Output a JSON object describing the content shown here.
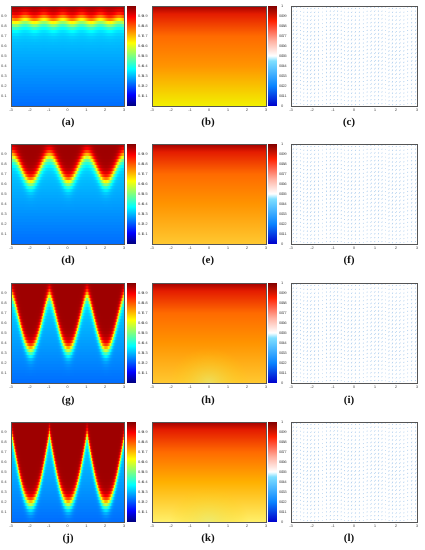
{
  "figure": {
    "rows": [
      {
        "labels": [
          "(a)",
          "(b)",
          "(c)"
        ],
        "fingers": 0
      },
      {
        "labels": [
          "(d)",
          "(e)",
          "(f)"
        ],
        "fingers": 1
      },
      {
        "labels": [
          "(g)",
          "(h)",
          "(i)"
        ],
        "fingers": 2
      },
      {
        "labels": [
          "(j)",
          "(k)",
          "(l)"
        ],
        "fingers": 3
      }
    ],
    "x_ticks": [
      "-3",
      "-2",
      "-1",
      "0",
      "1",
      "2",
      "3"
    ],
    "y_ticks": [
      "0.1",
      "0.2",
      "0.3",
      "0.4",
      "0.5",
      "0.6",
      "0.7",
      "0.8",
      "0.9"
    ],
    "y_ticks_full": [
      "0",
      "0.1",
      "0.2",
      "0.3",
      "0.4",
      "0.5",
      "0.6",
      "0.7",
      "0.8",
      "0.9",
      "1"
    ],
    "colorbar_ticks": [
      "0.1",
      "0.2",
      "0.3",
      "0.4",
      "0.5",
      "0.6",
      "0.7",
      "0.8",
      "0.9"
    ],
    "colormaps": {
      "concentration": "jet",
      "temperature": "yellow-red",
      "velocity": "blue-arrows"
    }
  }
}
